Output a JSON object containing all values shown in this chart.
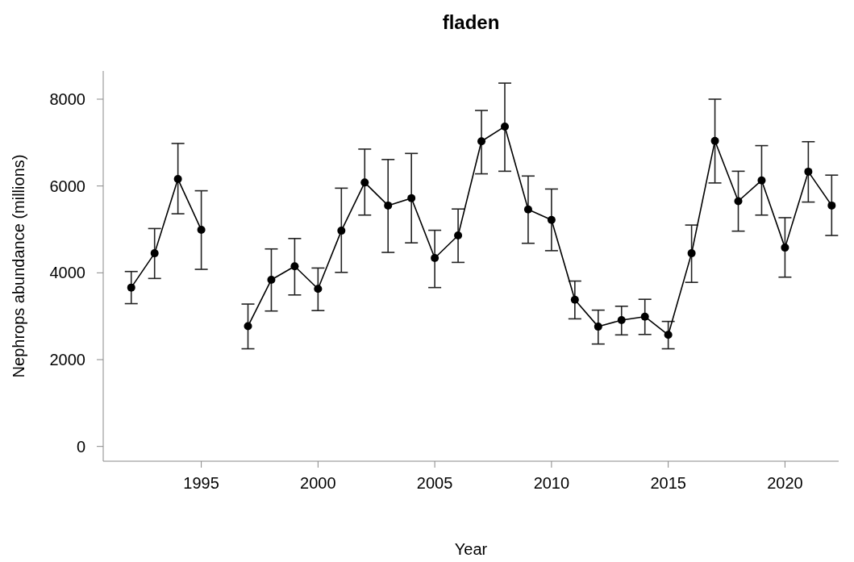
{
  "chart_data": {
    "type": "line",
    "title": "fladen",
    "xlabel": "Year",
    "ylabel": "Nephrops abundance (millions)",
    "x": [
      1992,
      1993,
      1994,
      1995,
      1996,
      1997,
      1998,
      1999,
      2000,
      2001,
      2002,
      2003,
      2004,
      2005,
      2006,
      2007,
      2008,
      2009,
      2010,
      2011,
      2012,
      2013,
      2014,
      2015,
      2016,
      2017,
      2018,
      2019,
      2020,
      2021,
      2022
    ],
    "series": [
      {
        "color": "#000000",
        "values": [
          3660,
          4450,
          6160,
          4990,
          null,
          2770,
          3840,
          4150,
          3630,
          4970,
          6080,
          5550,
          5720,
          4340,
          4860,
          7030,
          7370,
          5460,
          5220,
          3380,
          2760,
          2910,
          2990,
          2570,
          4450,
          7040,
          5650,
          6130,
          4580,
          6330,
          5550
        ],
        "errors": [
          [
            3290,
            4030
          ],
          [
            3870,
            5020
          ],
          [
            5360,
            6980
          ],
          [
            4080,
            5890
          ],
          null,
          [
            2250,
            3280
          ],
          [
            3120,
            4550
          ],
          [
            3490,
            4790
          ],
          [
            3130,
            4110
          ],
          [
            4010,
            5950
          ],
          [
            5330,
            6850
          ],
          [
            4470,
            6610
          ],
          [
            4690,
            6750
          ],
          [
            3660,
            4980
          ],
          [
            4240,
            5470
          ],
          [
            6280,
            7740
          ],
          [
            6340,
            8370
          ],
          [
            4680,
            6230
          ],
          [
            4510,
            5930
          ],
          [
            2940,
            3810
          ],
          [
            2360,
            3140
          ],
          [
            2570,
            3230
          ],
          [
            2580,
            3390
          ],
          [
            2250,
            2880
          ],
          [
            3780,
            5100
          ],
          [
            6070,
            8000
          ],
          [
            4960,
            6340
          ],
          [
            5330,
            6930
          ],
          [
            3900,
            5270
          ],
          [
            5630,
            7020
          ],
          [
            4860,
            6250
          ]
        ]
      }
    ],
    "xlim": [
      1990.8,
      2022.3
    ],
    "xticks": [
      1995,
      2000,
      2005,
      2010,
      2015,
      2020
    ],
    "ylim": [
      -340,
      8650
    ],
    "yticks": [
      0,
      2000,
      4000,
      6000,
      8000
    ],
    "marker": "circle",
    "line_style": "solid",
    "grid": false
  }
}
